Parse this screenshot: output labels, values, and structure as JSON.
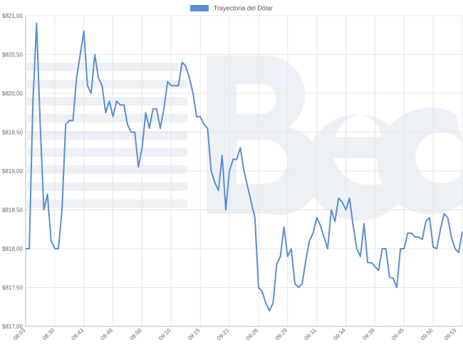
{
  "legend": {
    "label": "Trayectoria del Dólar",
    "color": "#5b8dd1"
  },
  "chart_data": {
    "type": "line",
    "legend_placement": "top-center",
    "grid": true,
    "ylim": [
      817.0,
      821.0
    ],
    "y_ticks": [
      {
        "value": 821.0,
        "label": "$821,00"
      },
      {
        "value": 820.5,
        "label": "$820,50"
      },
      {
        "value": 820.0,
        "label": "$820,00"
      },
      {
        "value": 819.5,
        "label": "$819,50"
      },
      {
        "value": 819.0,
        "label": "$819,00"
      },
      {
        "value": 818.5,
        "label": "$818,50"
      },
      {
        "value": 818.0,
        "label": "$818,00"
      },
      {
        "value": 817.5,
        "label": "$817,50"
      },
      {
        "value": 817.0,
        "label": "$817,00"
      }
    ],
    "x_tick_labels": [
      "08:03",
      "08:30",
      "08:43",
      "08:48",
      "08:56",
      "09:10",
      "09:15",
      "09:21",
      "09:26",
      "09:29",
      "09:31",
      "09:34",
      "09:39",
      "09:45",
      "09:50",
      "09:53"
    ],
    "series": [
      {
        "name": "Trayectoria del Dólar",
        "color": "#5b8dd1",
        "values": [
          818.0,
          818.0,
          819.9,
          820.9,
          819.6,
          818.5,
          818.7,
          818.1,
          818.0,
          818.0,
          818.5,
          819.6,
          819.65,
          819.65,
          820.2,
          820.5,
          820.8,
          820.1,
          820.0,
          820.5,
          820.2,
          820.1,
          819.75,
          819.9,
          819.7,
          819.9,
          819.85,
          819.85,
          819.6,
          819.5,
          819.5,
          819.05,
          819.3,
          819.75,
          819.55,
          819.8,
          819.8,
          819.55,
          819.8,
          820.15,
          820.1,
          820.1,
          820.1,
          820.4,
          820.35,
          820.2,
          820.0,
          819.7,
          819.7,
          819.6,
          819.55,
          819.0,
          818.85,
          818.75,
          819.2,
          818.5,
          819.0,
          819.15,
          819.15,
          819.3,
          819.0,
          818.8,
          818.6,
          818.4,
          817.5,
          817.45,
          817.3,
          817.2,
          817.3,
          817.8,
          817.9,
          818.28,
          817.9,
          818.0,
          817.55,
          817.5,
          817.55,
          817.85,
          818.1,
          818.2,
          818.4,
          818.3,
          818.15,
          818.0,
          818.5,
          818.35,
          818.65,
          818.6,
          818.5,
          818.65,
          818.3,
          818.0,
          817.9,
          818.32,
          817.82,
          817.82,
          817.77,
          817.72,
          818.0,
          818.0,
          817.63,
          817.62,
          817.5,
          818.0,
          818.0,
          818.2,
          818.2,
          818.15,
          818.15,
          818.12,
          818.35,
          818.4,
          818.02,
          818.0,
          818.25,
          818.45,
          818.4,
          818.15,
          818.0,
          817.95,
          818.22
        ]
      }
    ]
  }
}
